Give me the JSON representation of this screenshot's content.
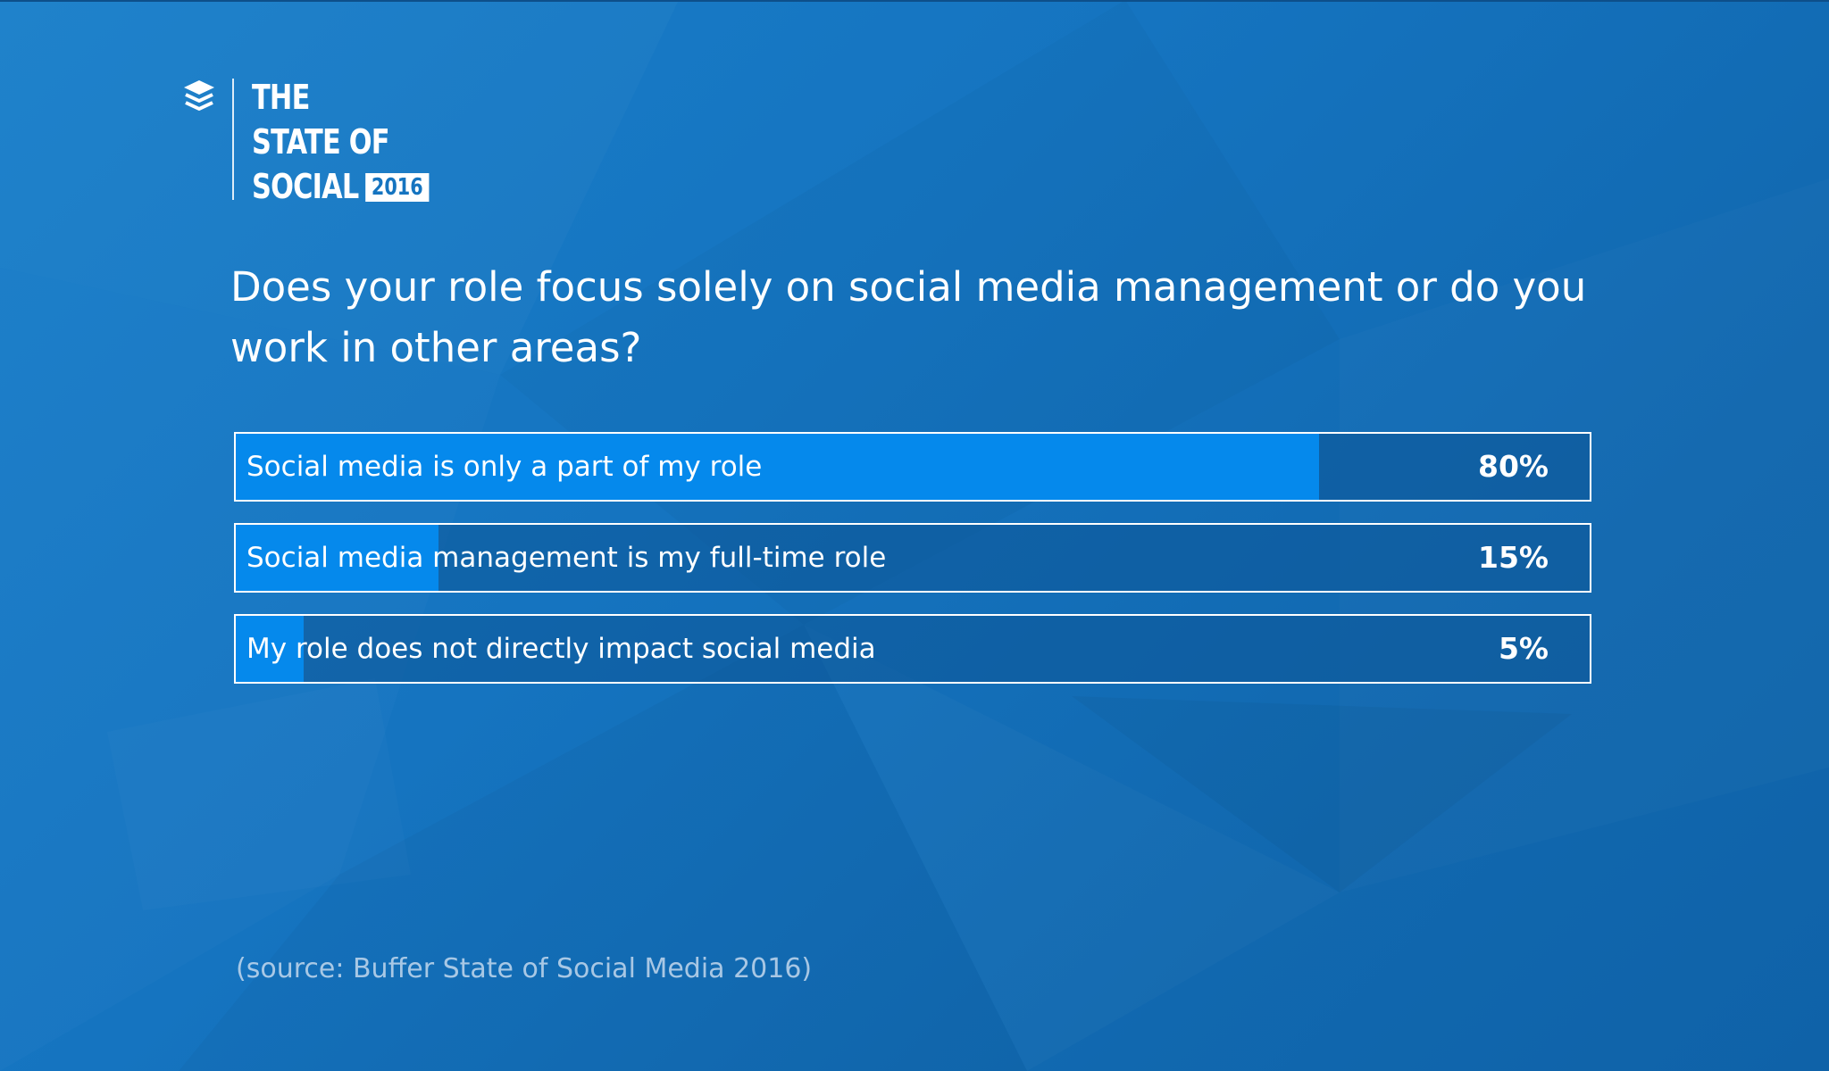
{
  "logo": {
    "line1": "THE",
    "line2": "STATE OF",
    "line3": "SOCIAL",
    "year": "2016"
  },
  "colors": {
    "bar_fill": "#0589ec",
    "bar_track": "#0f5c9e",
    "text": "#ffffff"
  },
  "chart_data": {
    "type": "bar",
    "orientation": "horizontal",
    "title": "Does your role focus solely on social media management or do you work in other areas?",
    "categories": [
      "Social media is only a part of my role",
      "Social media management is my full-time role",
      "My role does not directly impact social media"
    ],
    "values": [
      80,
      15,
      5
    ],
    "value_labels": [
      "80%",
      "15%",
      "5%"
    ],
    "unit": "%",
    "xlim": [
      0,
      100
    ],
    "source": "(source: Buffer State of Social Media 2016)"
  }
}
